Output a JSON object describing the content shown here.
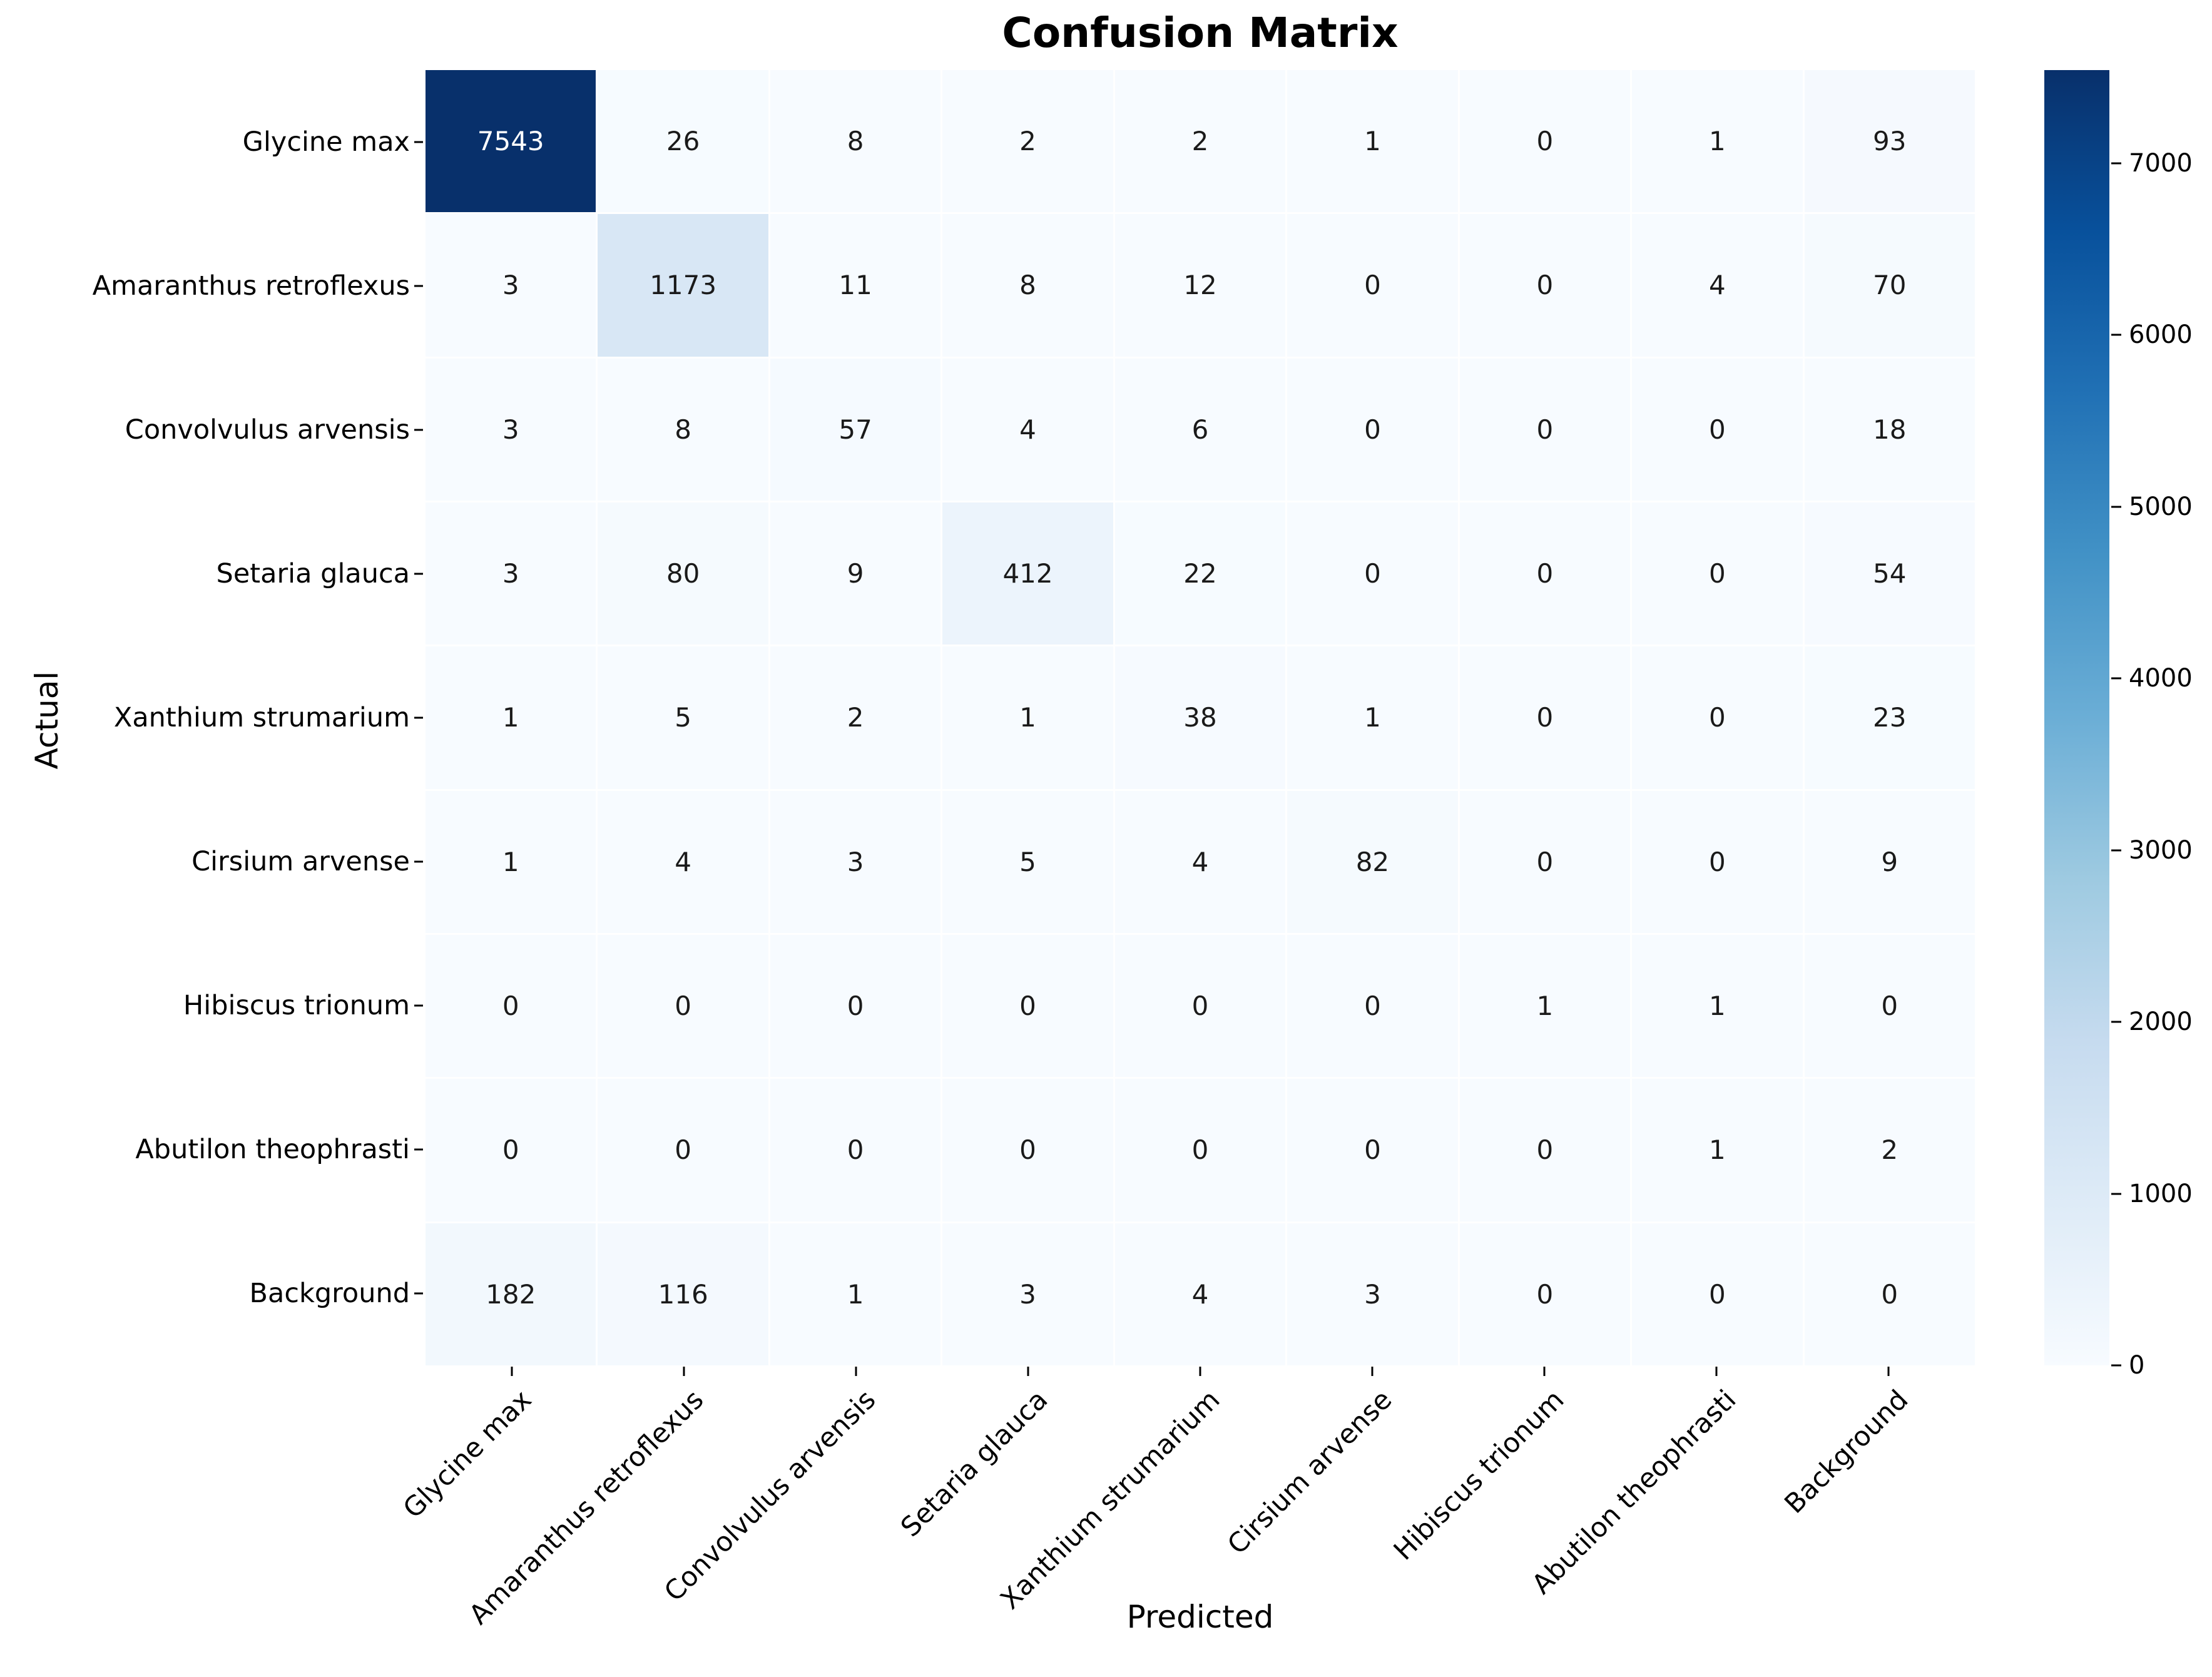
{
  "figure": {
    "title": "Confusion Matrix",
    "xlabel": "Predicted",
    "ylabel": "Actual"
  },
  "chart_data": {
    "type": "heatmap",
    "title": "Confusion Matrix",
    "xlabel": "Predicted",
    "ylabel": "Actual",
    "row_axis": "Actual",
    "col_axis": "Predicted",
    "categories": [
      "Glycine max",
      "Amaranthus retroflexus",
      "Convolvulus arvensis",
      "Setaria glauca",
      "Xanthium strumarium",
      "Cirsium arvense",
      "Hibiscus trionum",
      "Abutilon theophrasti",
      "Background"
    ],
    "matrix": [
      [
        7543,
        26,
        8,
        2,
        2,
        1,
        0,
        1,
        93
      ],
      [
        3,
        1173,
        11,
        8,
        12,
        0,
        0,
        4,
        70
      ],
      [
        3,
        8,
        57,
        4,
        6,
        0,
        0,
        0,
        18
      ],
      [
        3,
        80,
        9,
        412,
        22,
        0,
        0,
        0,
        54
      ],
      [
        1,
        5,
        2,
        1,
        38,
        1,
        0,
        0,
        23
      ],
      [
        1,
        4,
        3,
        5,
        4,
        82,
        0,
        0,
        9
      ],
      [
        0,
        0,
        0,
        0,
        0,
        0,
        1,
        1,
        0
      ],
      [
        0,
        0,
        0,
        0,
        0,
        0,
        0,
        1,
        2
      ],
      [
        182,
        116,
        1,
        3,
        4,
        3,
        0,
        0,
        0
      ]
    ],
    "vmin": 0,
    "vmax": 7543,
    "colormap": "Blues",
    "colormap_stops": [
      "#f7fbff",
      "#deebf7",
      "#c6dbef",
      "#9ecae1",
      "#6baed6",
      "#4292c6",
      "#2171b5",
      "#08519c",
      "#08306b"
    ],
    "colorbar_ticks": [
      0,
      1000,
      2000,
      3000,
      4000,
      5000,
      6000,
      7000
    ],
    "annotation_color_light_bg": "#1a1a1a",
    "annotation_color_dark_bg": "#ffffff",
    "legend_position": "right-colorbar",
    "grid": false
  }
}
